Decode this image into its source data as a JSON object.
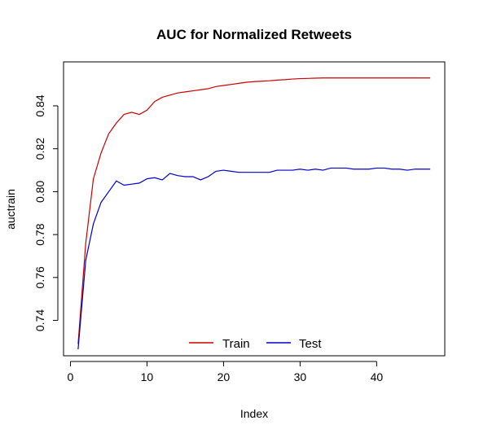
{
  "chart_data": {
    "type": "line",
    "title": "AUC for Normalized Retweets",
    "xlabel": "Index",
    "ylabel": "auctrain",
    "xlim": [
      -0.9,
      48.9
    ],
    "ylim": [
      0.7235,
      0.8605
    ],
    "xticks": [
      "0",
      "10",
      "20",
      "30",
      "40"
    ],
    "yticks": [
      "0.74",
      "0.76",
      "0.78",
      "0.80",
      "0.82",
      "0.84"
    ],
    "x": [
      1,
      2,
      3,
      4,
      5,
      6,
      7,
      8,
      9,
      10,
      11,
      12,
      13,
      14,
      15,
      16,
      17,
      18,
      19,
      20,
      21,
      22,
      23,
      24,
      25,
      26,
      27,
      28,
      29,
      30,
      31,
      32,
      33,
      34,
      35,
      36,
      37,
      38,
      39,
      40,
      41,
      42,
      43,
      44,
      45,
      46,
      47
    ],
    "series": [
      {
        "name": "Train",
        "color": "#cc0000",
        "values": [
          0.729,
          0.776,
          0.806,
          0.818,
          0.827,
          0.832,
          0.836,
          0.837,
          0.836,
          0.838,
          0.842,
          0.844,
          0.845,
          0.846,
          0.8465,
          0.847,
          0.8475,
          0.848,
          0.849,
          0.8495,
          0.85,
          0.8505,
          0.851,
          0.8513,
          0.8515,
          0.8517,
          0.852,
          0.8522,
          0.8525,
          0.8527,
          0.8528,
          0.8529,
          0.853,
          0.853,
          0.853,
          0.853,
          0.853,
          0.853,
          0.853,
          0.853,
          0.853,
          0.853,
          0.853,
          0.853,
          0.853,
          0.853,
          0.853
        ]
      },
      {
        "name": "Test",
        "color": "#0000cc",
        "values": [
          0.7265,
          0.768,
          0.785,
          0.795,
          0.8,
          0.805,
          0.803,
          0.8035,
          0.804,
          0.806,
          0.8065,
          0.8055,
          0.8085,
          0.8075,
          0.807,
          0.807,
          0.8055,
          0.807,
          0.8095,
          0.81,
          0.8095,
          0.809,
          0.809,
          0.809,
          0.809,
          0.809,
          0.81,
          0.81,
          0.81,
          0.8105,
          0.81,
          0.8105,
          0.81,
          0.811,
          0.811,
          0.811,
          0.8105,
          0.8105,
          0.8105,
          0.811,
          0.811,
          0.8105,
          0.8105,
          0.81,
          0.8105,
          0.8105,
          0.8105
        ]
      }
    ],
    "legend": {
      "position": "bottom-center",
      "entries": [
        "Train",
        "Test"
      ]
    }
  }
}
